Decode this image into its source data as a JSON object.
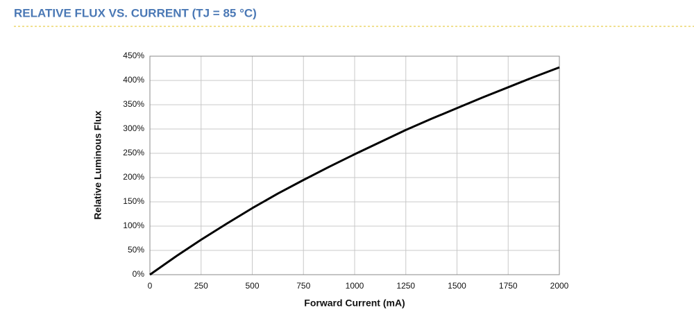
{
  "chart_data": {
    "type": "line",
    "title": "RELATIVE FLUX VS. CURRENT (TJ = 85 °C)",
    "x_label": "Forward Current (mA)",
    "y_label": "Relative Luminous Flux",
    "x": [
      0,
      125,
      250,
      375,
      500,
      625,
      750,
      875,
      1000,
      1125,
      1250,
      1375,
      1500,
      1625,
      1750,
      1875,
      2000
    ],
    "series": [
      {
        "color": "#000000",
        "values": [
          0,
          37,
          72,
          105,
          137,
          167,
          195,
          222,
          248,
          273,
          298,
          321,
          343,
          365,
          386,
          407,
          427
        ]
      }
    ],
    "xlim": [
      0,
      2000
    ],
    "xticks": [
      0,
      250,
      500,
      750,
      1000,
      1250,
      1500,
      1750,
      2000
    ],
    "ylim": [
      0,
      450
    ],
    "yticks": [
      {
        "value": 0,
        "label": "0%"
      },
      {
        "value": 50,
        "label": "50%"
      },
      {
        "value": 100,
        "label": "100%"
      },
      {
        "value": 150,
        "label": "150%"
      },
      {
        "value": 200,
        "label": "200%"
      },
      {
        "value": 250,
        "label": "250%"
      },
      {
        "value": 300,
        "label": "300%"
      },
      {
        "value": 350,
        "label": "350%"
      },
      {
        "value": 400,
        "label": "400%"
      },
      {
        "value": 450,
        "label": "450%"
      }
    ],
    "grid": true
  }
}
